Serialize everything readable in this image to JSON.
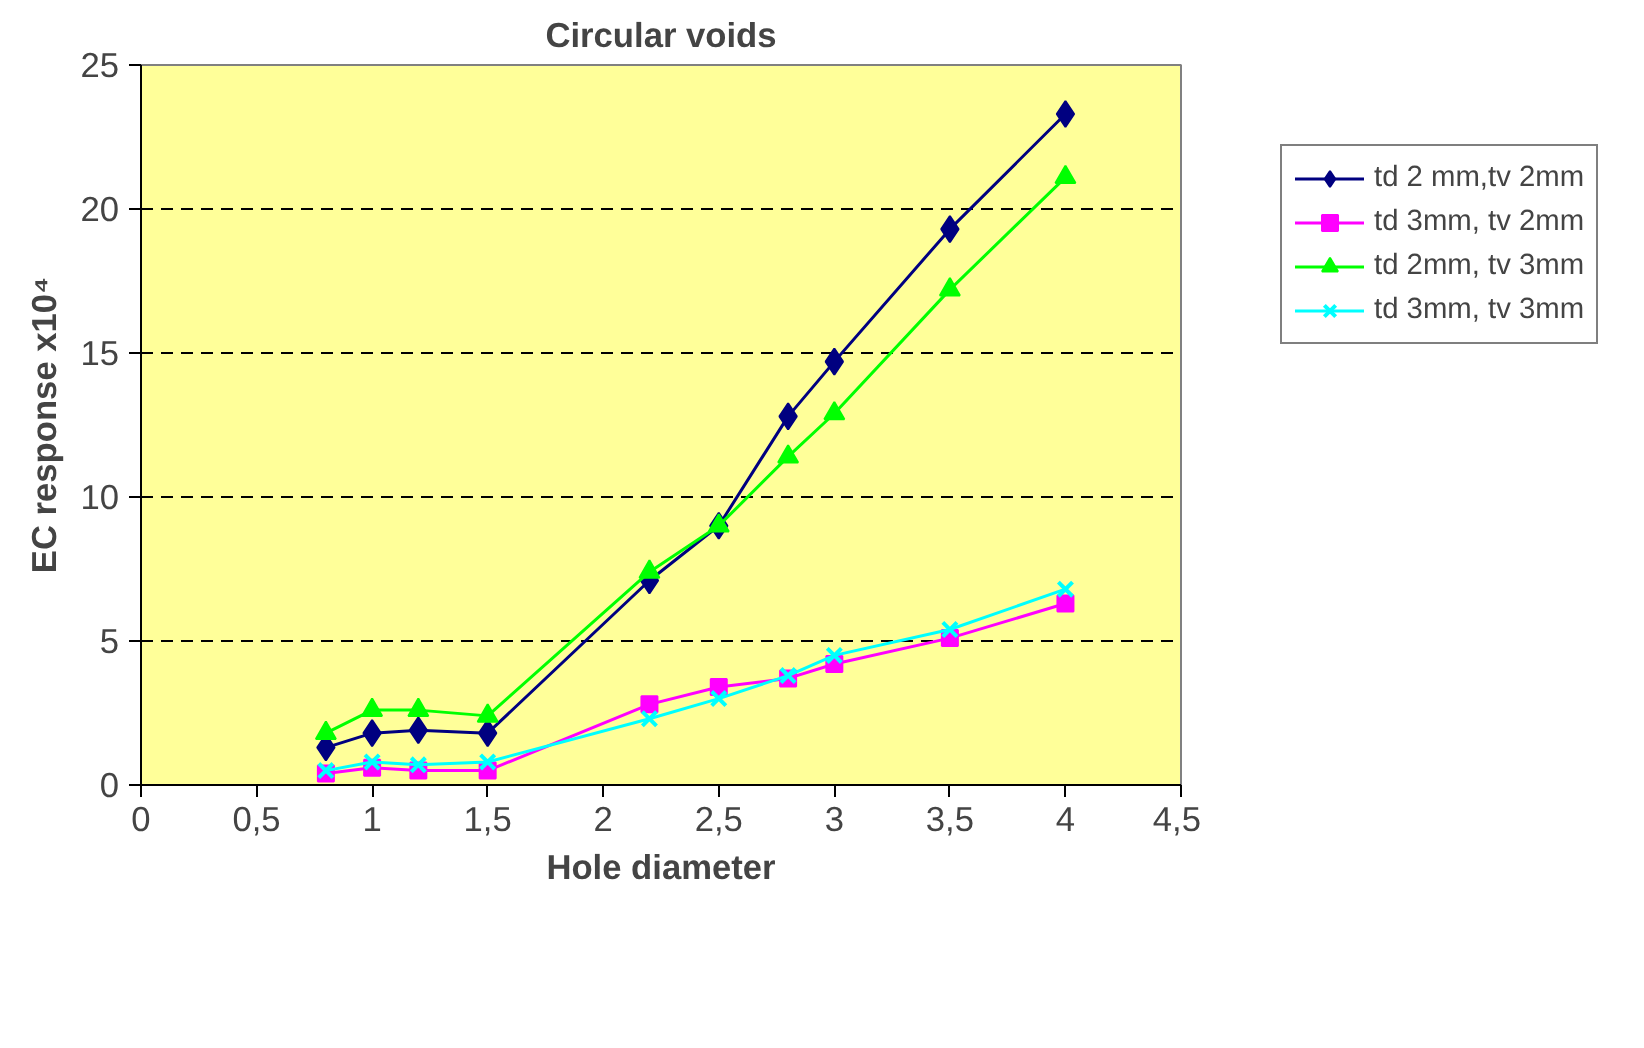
{
  "chart_data": {
    "type": "line",
    "title": "Circular voids",
    "xlabel": "Hole diameter",
    "ylabel": "EC response x10⁴",
    "xlim": [
      0,
      4.5
    ],
    "xticks": [
      0,
      {
        "value": 0.5,
        "label": "0,5"
      },
      1,
      {
        "value": 1.5,
        "label": "1,5"
      },
      2,
      {
        "value": 2.5,
        "label": "2,5"
      },
      3,
      {
        "value": 3.5,
        "label": "3,5"
      },
      4,
      {
        "value": 4.5,
        "label": "4,5"
      }
    ],
    "ylim": [
      0,
      25
    ],
    "yticks": [
      0,
      5,
      10,
      15,
      20,
      25
    ],
    "grid": "y",
    "legend": "right",
    "x": [
      0.8,
      1,
      1.2,
      1.5,
      2.2,
      2.5,
      2.8,
      3,
      3.5,
      4
    ],
    "series": [
      {
        "name": "td 2 mm,tv 2mm",
        "color": "#000080",
        "marker": "diamond",
        "values": [
          1.3,
          1.8,
          1.9,
          1.8,
          7.1,
          9.0,
          12.8,
          14.7,
          19.3,
          23.3
        ]
      },
      {
        "name": "td 3mm, tv 2mm",
        "color": "#ff00ff",
        "marker": "square",
        "values": [
          0.4,
          0.6,
          0.5,
          0.5,
          2.8,
          3.4,
          3.7,
          4.2,
          5.1,
          6.3
        ]
      },
      {
        "name": "td 2mm, tv 3mm",
        "color": "#00ff00",
        "marker": "triangle",
        "values": [
          1.8,
          2.6,
          2.6,
          2.4,
          7.4,
          9.0,
          11.4,
          12.9,
          17.2,
          21.1
        ]
      },
      {
        "name": "td 3mm, tv 3mm",
        "color": "#00ffff",
        "marker": "cross",
        "values": [
          0.5,
          0.8,
          0.7,
          0.8,
          2.3,
          3.0,
          3.8,
          4.5,
          5.4,
          6.8
        ]
      }
    ]
  }
}
